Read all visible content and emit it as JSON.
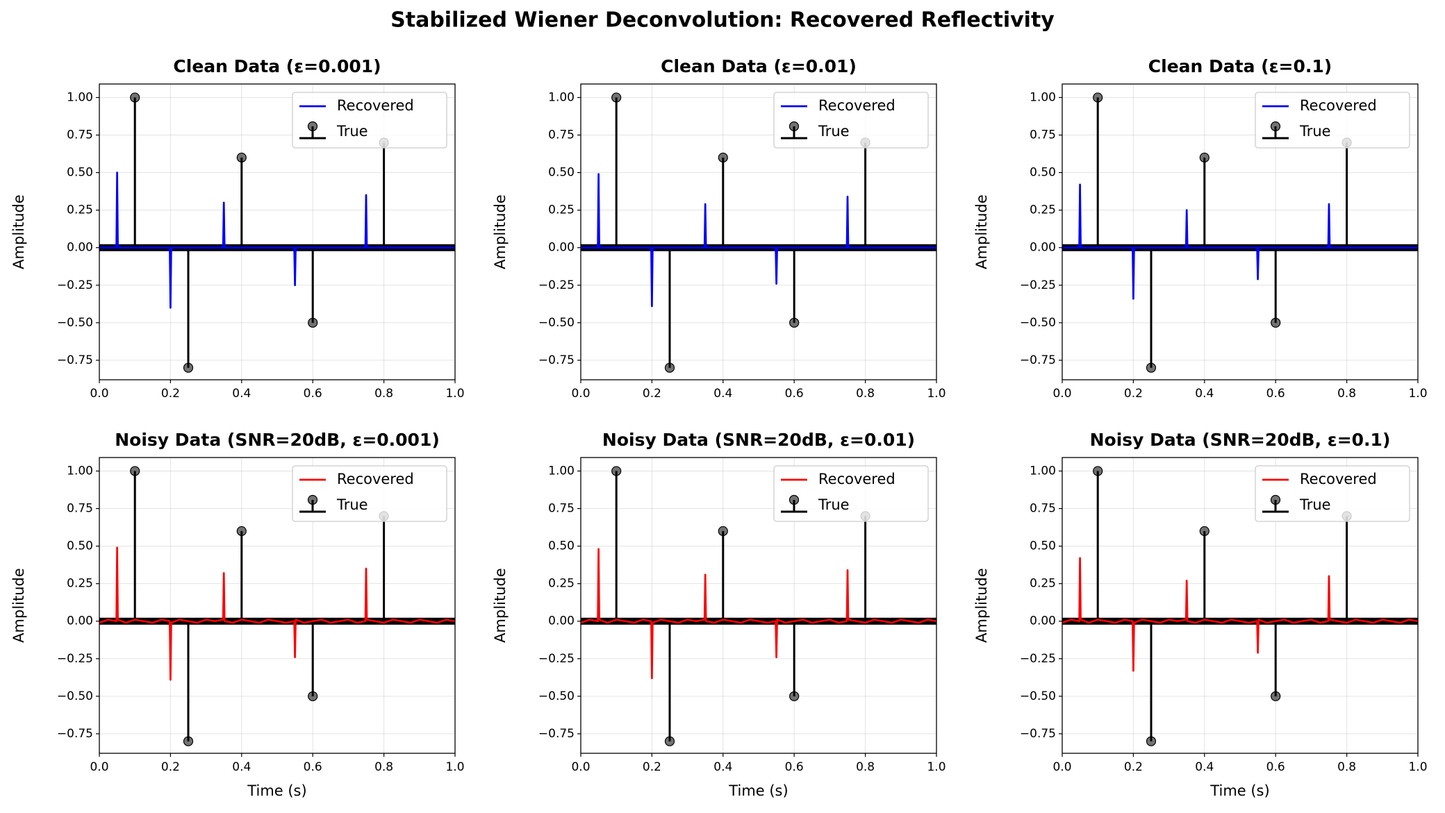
{
  "title": "Stabilized Wiener Deconvolution: Recovered Reflectivity",
  "chart_data": [
    {
      "type": "stem",
      "title": "Clean Data (ε=0.001)",
      "ylabel": "Amplitude",
      "xlim": [
        0,
        1
      ],
      "ylim": [
        -0.88,
        1.09
      ],
      "xticks": [
        {
          "value": 0,
          "label": "0.0"
        },
        {
          "value": 0.2,
          "label": "0.2"
        },
        {
          "value": 0.4,
          "label": "0.4"
        },
        {
          "value": 0.6,
          "label": "0.6"
        },
        {
          "value": 0.8,
          "label": "0.8"
        },
        {
          "value": 1,
          "label": "1.0"
        }
      ],
      "yticks": [
        {
          "value": -0.75,
          "label": "−0.75"
        },
        {
          "value": -0.5,
          "label": "−0.50"
        },
        {
          "value": -0.25,
          "label": "−0.25"
        },
        {
          "value": 0,
          "label": "0.00"
        },
        {
          "value": 0.25,
          "label": "0.25"
        },
        {
          "value": 0.5,
          "label": "0.50"
        },
        {
          "value": 0.75,
          "label": "0.75"
        },
        {
          "value": 1,
          "label": "1.00"
        }
      ],
      "grid": true,
      "legend": "upper right",
      "series": [
        {
          "name": "Recovered",
          "style": "line",
          "color": "#0000ff",
          "x": [
            0,
            0.048,
            0.05,
            0.052,
            0.198,
            0.2,
            0.202,
            0.348,
            0.35,
            0.352,
            0.548,
            0.55,
            0.552,
            0.748,
            0.75,
            0.752,
            1
          ],
          "values": [
            0,
            0,
            0.5,
            0,
            0,
            -0.4,
            0,
            0,
            0.3,
            0,
            0,
            -0.25,
            0,
            0,
            0.35,
            0,
            0
          ]
        },
        {
          "name": "True",
          "style": "stem",
          "color": "#000000",
          "x": [
            0.1,
            0.25,
            0.4,
            0.6,
            0.8
          ],
          "values": [
            1.0,
            -0.8,
            0.6,
            -0.5,
            0.7
          ]
        }
      ]
    },
    {
      "type": "stem",
      "title": "Clean Data (ε=0.01)",
      "ylabel": "Amplitude",
      "xlim": [
        0,
        1
      ],
      "ylim": [
        -0.88,
        1.09
      ],
      "xticks": [
        {
          "value": 0,
          "label": "0.0"
        },
        {
          "value": 0.2,
          "label": "0.2"
        },
        {
          "value": 0.4,
          "label": "0.4"
        },
        {
          "value": 0.6,
          "label": "0.6"
        },
        {
          "value": 0.8,
          "label": "0.8"
        },
        {
          "value": 1,
          "label": "1.0"
        }
      ],
      "yticks": [
        {
          "value": -0.75,
          "label": "−0.75"
        },
        {
          "value": -0.5,
          "label": "−0.50"
        },
        {
          "value": -0.25,
          "label": "−0.25"
        },
        {
          "value": 0,
          "label": "0.00"
        },
        {
          "value": 0.25,
          "label": "0.25"
        },
        {
          "value": 0.5,
          "label": "0.50"
        },
        {
          "value": 0.75,
          "label": "0.75"
        },
        {
          "value": 1,
          "label": "1.00"
        }
      ],
      "grid": true,
      "legend": "upper right",
      "series": [
        {
          "name": "Recovered",
          "style": "line",
          "color": "#0000ff",
          "x": [
            0,
            0.048,
            0.05,
            0.052,
            0.198,
            0.2,
            0.202,
            0.348,
            0.35,
            0.352,
            0.548,
            0.55,
            0.552,
            0.748,
            0.75,
            0.752,
            1
          ],
          "values": [
            0,
            0,
            0.49,
            0,
            0,
            -0.39,
            0,
            0,
            0.29,
            0,
            0,
            -0.24,
            0,
            0,
            0.34,
            0,
            0
          ]
        },
        {
          "name": "True",
          "style": "stem",
          "color": "#000000",
          "x": [
            0.1,
            0.25,
            0.4,
            0.6,
            0.8
          ],
          "values": [
            1.0,
            -0.8,
            0.6,
            -0.5,
            0.7
          ]
        }
      ]
    },
    {
      "type": "stem",
      "title": "Clean Data (ε=0.1)",
      "ylabel": "Amplitude",
      "xlim": [
        0,
        1
      ],
      "ylim": [
        -0.88,
        1.09
      ],
      "xticks": [
        {
          "value": 0,
          "label": "0.0"
        },
        {
          "value": 0.2,
          "label": "0.2"
        },
        {
          "value": 0.4,
          "label": "0.4"
        },
        {
          "value": 0.6,
          "label": "0.6"
        },
        {
          "value": 0.8,
          "label": "0.8"
        },
        {
          "value": 1,
          "label": "1.0"
        }
      ],
      "yticks": [
        {
          "value": -0.75,
          "label": "−0.75"
        },
        {
          "value": -0.5,
          "label": "−0.50"
        },
        {
          "value": -0.25,
          "label": "−0.25"
        },
        {
          "value": 0,
          "label": "0.00"
        },
        {
          "value": 0.25,
          "label": "0.25"
        },
        {
          "value": 0.5,
          "label": "0.50"
        },
        {
          "value": 0.75,
          "label": "0.75"
        },
        {
          "value": 1,
          "label": "1.00"
        }
      ],
      "grid": true,
      "legend": "upper right",
      "series": [
        {
          "name": "Recovered",
          "style": "line",
          "color": "#0000ff",
          "x": [
            0,
            0.048,
            0.05,
            0.052,
            0.198,
            0.2,
            0.202,
            0.348,
            0.35,
            0.352,
            0.548,
            0.55,
            0.552,
            0.748,
            0.75,
            0.752,
            1
          ],
          "values": [
            0,
            0,
            0.42,
            0,
            0,
            -0.34,
            0,
            0,
            0.25,
            0,
            0,
            -0.21,
            0,
            0,
            0.29,
            0,
            0
          ]
        },
        {
          "name": "True",
          "style": "stem",
          "color": "#000000",
          "x": [
            0.1,
            0.25,
            0.4,
            0.6,
            0.8
          ],
          "values": [
            1.0,
            -0.8,
            0.6,
            -0.5,
            0.7
          ]
        }
      ]
    },
    {
      "type": "stem",
      "title": "Noisy Data (SNR=20dB, ε=0.001)",
      "xlabel": "Time (s)",
      "ylabel": "Amplitude",
      "xlim": [
        0,
        1
      ],
      "ylim": [
        -0.88,
        1.09
      ],
      "xticks": [
        {
          "value": 0,
          "label": "0.0"
        },
        {
          "value": 0.2,
          "label": "0.2"
        },
        {
          "value": 0.4,
          "label": "0.4"
        },
        {
          "value": 0.6,
          "label": "0.6"
        },
        {
          "value": 0.8,
          "label": "0.8"
        },
        {
          "value": 1,
          "label": "1.0"
        }
      ],
      "yticks": [
        {
          "value": -0.75,
          "label": "−0.75"
        },
        {
          "value": -0.5,
          "label": "−0.50"
        },
        {
          "value": -0.25,
          "label": "−0.25"
        },
        {
          "value": 0,
          "label": "0.00"
        },
        {
          "value": 0.25,
          "label": "0.25"
        },
        {
          "value": 0.5,
          "label": "0.50"
        },
        {
          "value": 0.75,
          "label": "0.75"
        },
        {
          "value": 1,
          "label": "1.00"
        }
      ],
      "grid": true,
      "legend": "upper right",
      "series": [
        {
          "name": "Recovered",
          "style": "line",
          "color": "#ff0000",
          "x": [
            0,
            0.025,
            0.048,
            0.05,
            0.052,
            0.075,
            0.1,
            0.125,
            0.15,
            0.175,
            0.198,
            0.2,
            0.202,
            0.225,
            0.25,
            0.275,
            0.3,
            0.325,
            0.348,
            0.35,
            0.352,
            0.375,
            0.4,
            0.425,
            0.45,
            0.475,
            0.5,
            0.525,
            0.548,
            0.55,
            0.552,
            0.575,
            0.6,
            0.625,
            0.65,
            0.675,
            0.7,
            0.725,
            0.748,
            0.75,
            0.752,
            0.775,
            0.8,
            0.825,
            0.85,
            0.875,
            0.9,
            0.925,
            0.95,
            0.975,
            1
          ],
          "values": [
            -0.01,
            0.01,
            0,
            0.49,
            0.01,
            -0.01,
            0.01,
            0,
            -0.01,
            0.01,
            0,
            -0.39,
            -0.01,
            0.01,
            0,
            -0.01,
            0.01,
            0,
            0.01,
            0.32,
            0,
            -0.01,
            0.01,
            0,
            -0.01,
            0.01,
            0,
            -0.01,
            0,
            -0.24,
            0.01,
            -0.01,
            0,
            0.01,
            -0.01,
            0,
            0.01,
            -0.01,
            0,
            0.35,
            0.01,
            0,
            -0.01,
            0.01,
            0,
            -0.01,
            0.01,
            0,
            -0.01,
            0.01,
            0
          ]
        },
        {
          "name": "True",
          "style": "stem",
          "color": "#000000",
          "x": [
            0.1,
            0.25,
            0.4,
            0.6,
            0.8
          ],
          "values": [
            1.0,
            -0.8,
            0.6,
            -0.5,
            0.7
          ]
        }
      ]
    },
    {
      "type": "stem",
      "title": "Noisy Data (SNR=20dB, ε=0.01)",
      "xlabel": "Time (s)",
      "ylabel": "Amplitude",
      "xlim": [
        0,
        1
      ],
      "ylim": [
        -0.88,
        1.09
      ],
      "xticks": [
        {
          "value": 0,
          "label": "0.0"
        },
        {
          "value": 0.2,
          "label": "0.2"
        },
        {
          "value": 0.4,
          "label": "0.4"
        },
        {
          "value": 0.6,
          "label": "0.6"
        },
        {
          "value": 0.8,
          "label": "0.8"
        },
        {
          "value": 1,
          "label": "1.0"
        }
      ],
      "yticks": [
        {
          "value": -0.75,
          "label": "−0.75"
        },
        {
          "value": -0.5,
          "label": "−0.50"
        },
        {
          "value": -0.25,
          "label": "−0.25"
        },
        {
          "value": 0,
          "label": "0.00"
        },
        {
          "value": 0.25,
          "label": "0.25"
        },
        {
          "value": 0.5,
          "label": "0.50"
        },
        {
          "value": 0.75,
          "label": "0.75"
        },
        {
          "value": 1,
          "label": "1.00"
        }
      ],
      "grid": true,
      "legend": "upper right",
      "series": [
        {
          "name": "Recovered",
          "style": "line",
          "color": "#ff0000",
          "x": [
            0,
            0.025,
            0.048,
            0.05,
            0.052,
            0.075,
            0.1,
            0.125,
            0.15,
            0.175,
            0.198,
            0.2,
            0.202,
            0.225,
            0.25,
            0.275,
            0.3,
            0.325,
            0.348,
            0.35,
            0.352,
            0.375,
            0.4,
            0.425,
            0.45,
            0.475,
            0.5,
            0.525,
            0.548,
            0.55,
            0.552,
            0.575,
            0.6,
            0.625,
            0.65,
            0.675,
            0.7,
            0.725,
            0.748,
            0.75,
            0.752,
            0.775,
            0.8,
            0.825,
            0.85,
            0.875,
            0.9,
            0.925,
            0.95,
            0.975,
            1
          ],
          "values": [
            -0.01,
            0.01,
            0,
            0.48,
            0.01,
            -0.01,
            0.01,
            0,
            -0.01,
            0.01,
            0,
            -0.38,
            -0.01,
            0.01,
            0,
            -0.01,
            0.01,
            0,
            0.01,
            0.31,
            0,
            -0.01,
            0.01,
            0,
            -0.01,
            0.01,
            0,
            -0.01,
            0,
            -0.24,
            0.01,
            -0.01,
            0,
            0.01,
            -0.01,
            0,
            0.01,
            -0.01,
            0,
            0.34,
            0.01,
            0,
            -0.01,
            0.01,
            0,
            -0.01,
            0.01,
            0,
            -0.01,
            0.01,
            0
          ]
        },
        {
          "name": "True",
          "style": "stem",
          "color": "#000000",
          "x": [
            0.1,
            0.25,
            0.4,
            0.6,
            0.8
          ],
          "values": [
            1.0,
            -0.8,
            0.6,
            -0.5,
            0.7
          ]
        }
      ]
    },
    {
      "type": "stem",
      "title": "Noisy Data (SNR=20dB, ε=0.1)",
      "xlabel": "Time (s)",
      "ylabel": "Amplitude",
      "xlim": [
        0,
        1
      ],
      "ylim": [
        -0.88,
        1.09
      ],
      "xticks": [
        {
          "value": 0,
          "label": "0.0"
        },
        {
          "value": 0.2,
          "label": "0.2"
        },
        {
          "value": 0.4,
          "label": "0.4"
        },
        {
          "value": 0.6,
          "label": "0.6"
        },
        {
          "value": 0.8,
          "label": "0.8"
        },
        {
          "value": 1,
          "label": "1.0"
        }
      ],
      "yticks": [
        {
          "value": -0.75,
          "label": "−0.75"
        },
        {
          "value": -0.5,
          "label": "−0.50"
        },
        {
          "value": -0.25,
          "label": "−0.25"
        },
        {
          "value": 0,
          "label": "0.00"
        },
        {
          "value": 0.25,
          "label": "0.25"
        },
        {
          "value": 0.5,
          "label": "0.50"
        },
        {
          "value": 0.75,
          "label": "0.75"
        },
        {
          "value": 1,
          "label": "1.00"
        }
      ],
      "grid": true,
      "legend": "upper right",
      "series": [
        {
          "name": "Recovered",
          "style": "line",
          "color": "#ff0000",
          "x": [
            0,
            0.025,
            0.048,
            0.05,
            0.052,
            0.075,
            0.1,
            0.125,
            0.15,
            0.175,
            0.198,
            0.2,
            0.202,
            0.225,
            0.25,
            0.275,
            0.3,
            0.325,
            0.348,
            0.35,
            0.352,
            0.375,
            0.4,
            0.425,
            0.45,
            0.475,
            0.5,
            0.525,
            0.548,
            0.55,
            0.552,
            0.575,
            0.6,
            0.625,
            0.65,
            0.675,
            0.7,
            0.725,
            0.748,
            0.75,
            0.752,
            0.775,
            0.8,
            0.825,
            0.85,
            0.875,
            0.9,
            0.925,
            0.95,
            0.975,
            1
          ],
          "values": [
            -0.01,
            0.01,
            0,
            0.42,
            0.01,
            -0.01,
            0.01,
            0,
            -0.01,
            0.01,
            0,
            -0.33,
            -0.01,
            0.01,
            0,
            -0.01,
            0.01,
            0,
            0.01,
            0.27,
            0,
            -0.01,
            0.01,
            0,
            -0.01,
            0.01,
            0,
            -0.01,
            0,
            -0.21,
            0.01,
            -0.01,
            0,
            0.01,
            -0.01,
            0,
            0.01,
            -0.01,
            0,
            0.3,
            0.01,
            0,
            -0.01,
            0.01,
            0,
            -0.01,
            0.01,
            0,
            -0.01,
            0.01,
            0
          ]
        },
        {
          "name": "True",
          "style": "stem",
          "color": "#000000",
          "x": [
            0.1,
            0.25,
            0.4,
            0.6,
            0.8
          ],
          "values": [
            1.0,
            -0.8,
            0.6,
            -0.5,
            0.7
          ]
        }
      ]
    }
  ]
}
